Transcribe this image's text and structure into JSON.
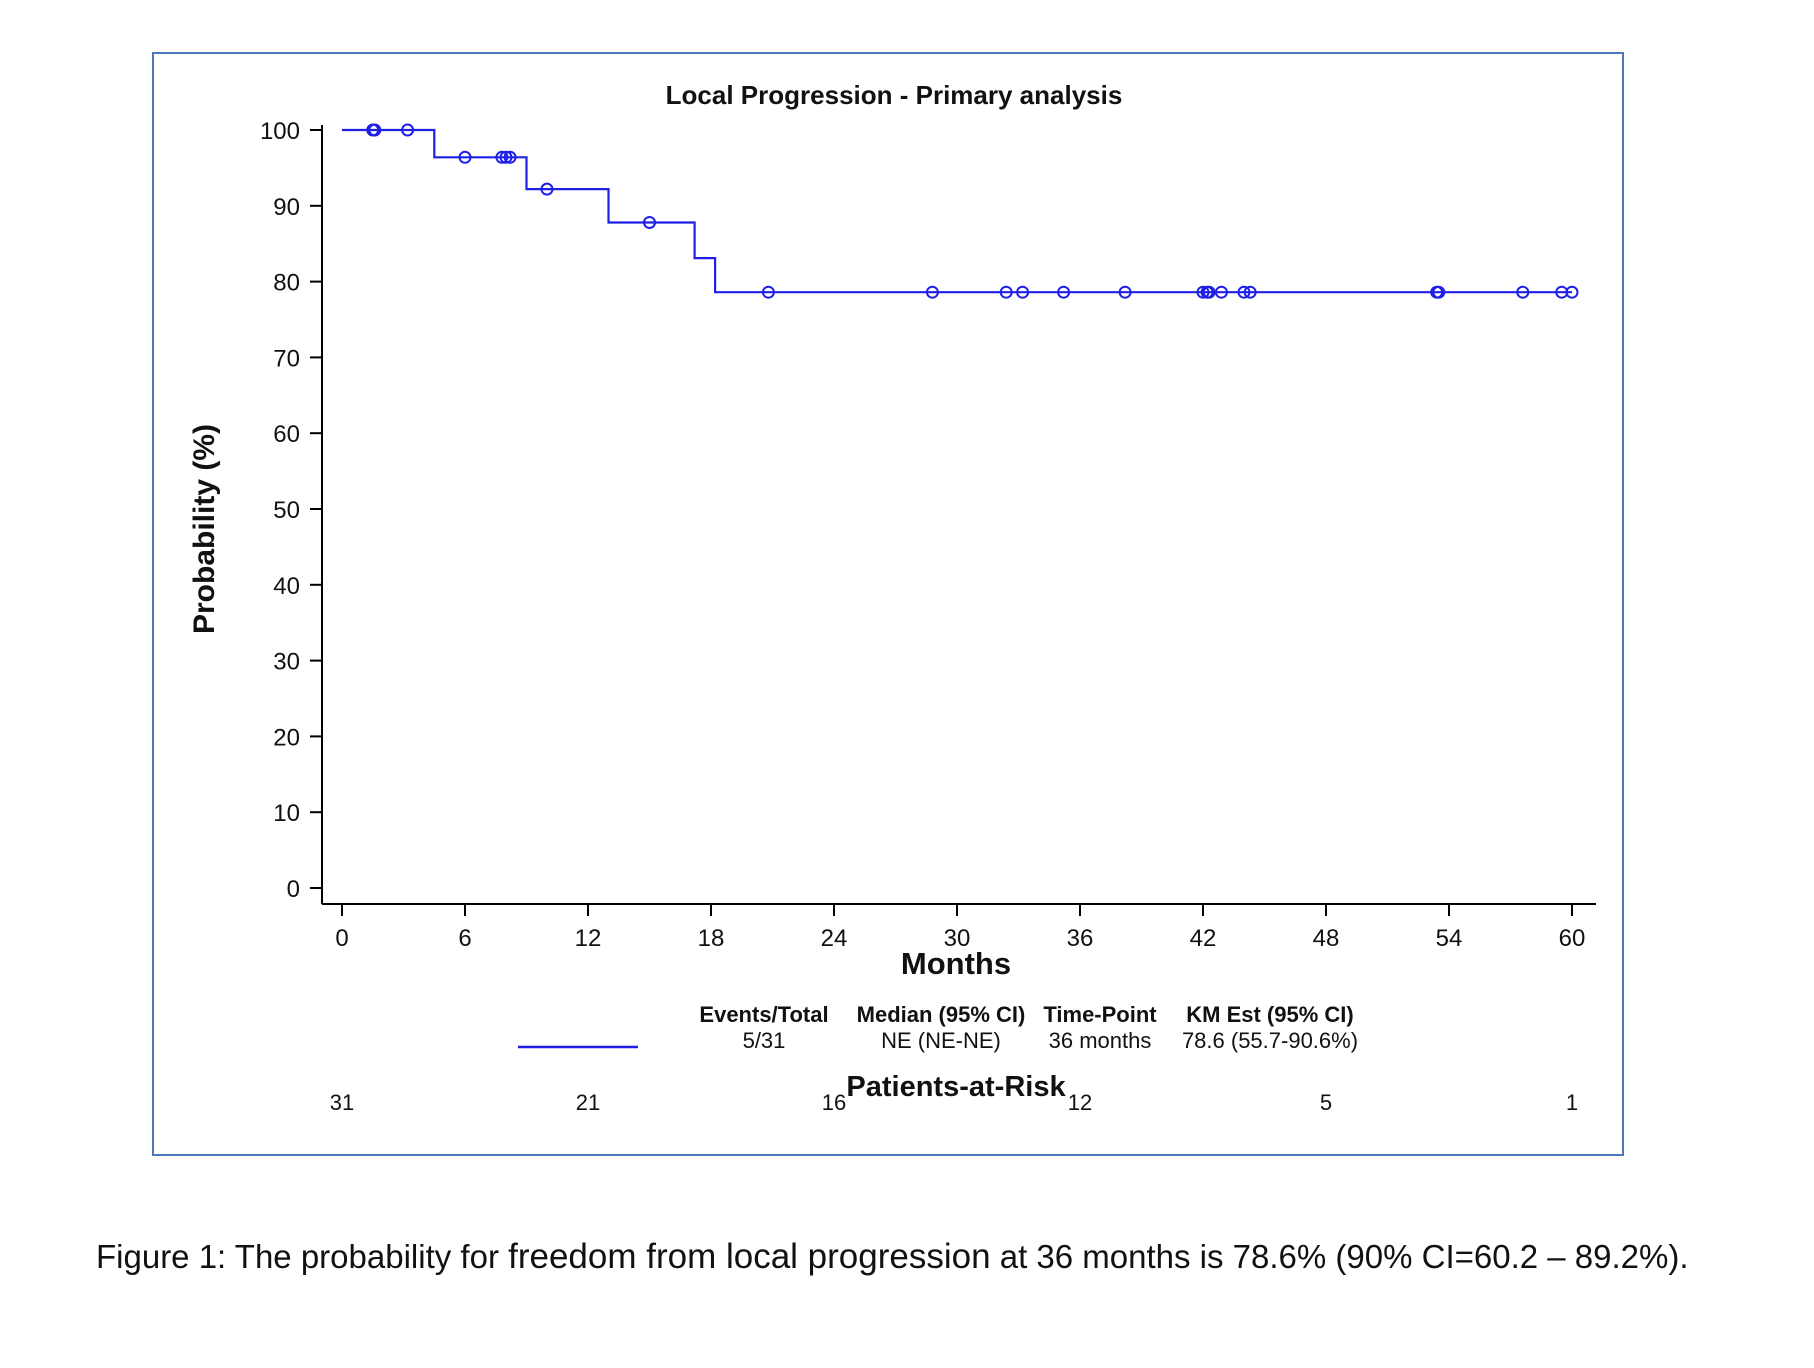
{
  "chart_data": {
    "type": "line",
    "subtype": "kaplan-meier step",
    "title": "Local Progression - Primary analysis",
    "xlabel": "Months",
    "ylabel": "Probability (%)",
    "xlim": [
      0,
      60
    ],
    "ylim": [
      0,
      100
    ],
    "xticks": [
      0,
      6,
      12,
      18,
      24,
      30,
      36,
      42,
      48,
      54,
      60
    ],
    "yticks": [
      0,
      10,
      20,
      30,
      40,
      50,
      60,
      70,
      80,
      90,
      100
    ],
    "grid": false,
    "line_color": "#1f1fe6",
    "series": [
      {
        "step_points": [
          [
            0,
            100
          ],
          [
            4.5,
            100
          ],
          [
            4.5,
            96.4
          ],
          [
            9.0,
            96.4
          ],
          [
            9.0,
            92.2
          ],
          [
            13.0,
            92.2
          ],
          [
            13.0,
            87.8
          ],
          [
            17.2,
            87.8
          ],
          [
            17.2,
            83.1
          ],
          [
            18.2,
            83.1
          ],
          [
            18.2,
            78.6
          ],
          [
            60,
            78.6
          ]
        ],
        "censored": [
          [
            1.5,
            100
          ],
          [
            1.6,
            100
          ],
          [
            3.2,
            100
          ],
          [
            6.0,
            96.4
          ],
          [
            7.8,
            96.4
          ],
          [
            8.0,
            96.4
          ],
          [
            8.2,
            96.4
          ],
          [
            10.0,
            92.2
          ],
          [
            15.0,
            87.8
          ],
          [
            20.8,
            78.6
          ],
          [
            28.8,
            78.6
          ],
          [
            32.4,
            78.6
          ],
          [
            33.2,
            78.6
          ],
          [
            35.2,
            78.6
          ],
          [
            38.2,
            78.6
          ],
          [
            42.0,
            78.6
          ],
          [
            42.2,
            78.6
          ],
          [
            42.3,
            78.6
          ],
          [
            42.9,
            78.6
          ],
          [
            44.0,
            78.6
          ],
          [
            44.3,
            78.6
          ],
          [
            53.4,
            78.6
          ],
          [
            53.5,
            78.6
          ],
          [
            57.6,
            78.6
          ],
          [
            59.5,
            78.6
          ],
          [
            60.0,
            78.6
          ]
        ]
      }
    ],
    "legend_table": {
      "headers": [
        "Events/Total",
        "Median (95% CI)",
        "Time-Point",
        "KM Est (95% CI)"
      ],
      "row": [
        "5/31",
        "NE (NE-NE)",
        "36 months",
        "78.6 (55.7-90.6%)"
      ]
    },
    "at_risk": {
      "title": "Patients-at-Risk",
      "times": [
        0,
        12,
        24,
        36,
        48,
        60
      ],
      "counts": [
        "31",
        "21",
        "16",
        "12",
        "5",
        "1"
      ]
    }
  },
  "caption": {
    "part1": "Figure 1: The probability for ",
    "part2": "freedom from local progression",
    "part3": " at 36 months is 78.6% (90% CI=60.2 – 89.2%)."
  }
}
